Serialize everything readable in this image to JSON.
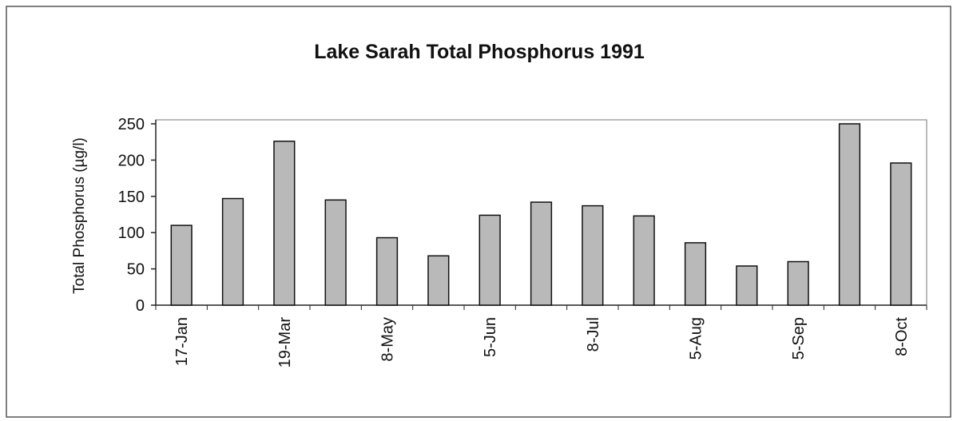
{
  "chart_data": {
    "type": "bar",
    "title": "Lake Sarah Total Phosphorus 1991",
    "y_label": "Total Phosphorus (µg/l)",
    "categories": [
      "17-Jan",
      null,
      "19-Mar",
      null,
      "8-May",
      null,
      "5-Jun",
      null,
      "8-Jul",
      null,
      "5-Aug",
      null,
      "5-Sep",
      null,
      "8-Oct"
    ],
    "values": [
      110,
      147,
      226,
      145,
      93,
      68,
      124,
      142,
      137,
      123,
      86,
      54,
      60,
      250,
      196
    ],
    "color": "#b9b9b9",
    "ylim": [
      0,
      250
    ],
    "yticks": [
      0,
      50,
      100,
      150,
      200,
      250
    ],
    "grid": false
  }
}
